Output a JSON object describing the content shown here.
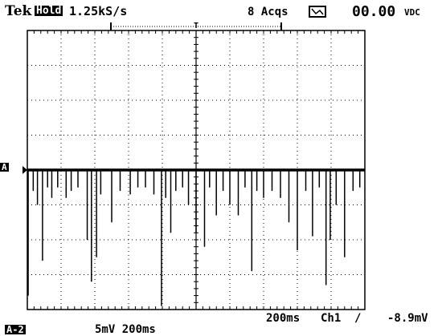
{
  "top_bar": {
    "brand": "Tek",
    "mode_badge": "Hold",
    "sample_rate": "1.25kS/s",
    "acquisitions": "8 Acqs",
    "readout": "00.00",
    "readout_unit": "VDC",
    "trigger_marker": "T"
  },
  "screen": {
    "channel_marker": "A",
    "center_marker": "T"
  },
  "bottom_bar": {
    "timebase": "200ms",
    "trigger_channel": "Ch1",
    "trigger_slope": "/",
    "trigger_level": "-8.9mV",
    "channel_badge": "A-2",
    "scale": "5mV 200ms"
  },
  "colors": {
    "trace": "#000000",
    "background": "#ffffff",
    "grid": "#000000"
  },
  "waveform": {
    "baseline_div": 0,
    "spikes": [
      [
        0.05,
        3.6
      ],
      [
        0.35,
        0.6
      ],
      [
        0.6,
        1.0
      ],
      [
        0.9,
        2.6
      ],
      [
        1.2,
        0.5
      ],
      [
        1.45,
        0.8
      ],
      [
        1.8,
        0.5
      ],
      [
        2.3,
        0.8
      ],
      [
        2.6,
        0.6
      ],
      [
        3.0,
        0.5
      ],
      [
        3.55,
        2.0
      ],
      [
        3.8,
        3.2
      ],
      [
        4.1,
        2.5
      ],
      [
        4.35,
        0.7
      ],
      [
        5.0,
        1.5
      ],
      [
        5.5,
        0.6
      ],
      [
        6.1,
        0.7
      ],
      [
        6.55,
        0.5
      ],
      [
        7.0,
        0.5
      ],
      [
        7.5,
        0.7
      ],
      [
        7.95,
        3.9
      ],
      [
        8.2,
        0.8
      ],
      [
        8.5,
        1.8
      ],
      [
        8.8,
        0.6
      ],
      [
        9.2,
        0.5
      ],
      [
        9.55,
        1.0
      ],
      [
        10.0,
        1.8
      ],
      [
        10.5,
        2.2
      ],
      [
        10.8,
        0.5
      ],
      [
        11.2,
        1.3
      ],
      [
        11.6,
        0.6
      ],
      [
        12.0,
        1.0
      ],
      [
        12.5,
        1.3
      ],
      [
        12.9,
        0.5
      ],
      [
        13.3,
        2.9
      ],
      [
        13.6,
        0.6
      ],
      [
        14.0,
        0.8
      ],
      [
        14.5,
        0.6
      ],
      [
        15.0,
        0.8
      ],
      [
        15.5,
        1.5
      ],
      [
        16.0,
        2.3
      ],
      [
        16.5,
        0.6
      ],
      [
        16.9,
        1.9
      ],
      [
        17.3,
        0.5
      ],
      [
        17.7,
        3.3
      ],
      [
        17.95,
        2.0
      ],
      [
        18.3,
        1.0
      ],
      [
        18.8,
        2.5
      ],
      [
        19.3,
        0.6
      ],
      [
        19.7,
        0.5
      ]
    ]
  }
}
